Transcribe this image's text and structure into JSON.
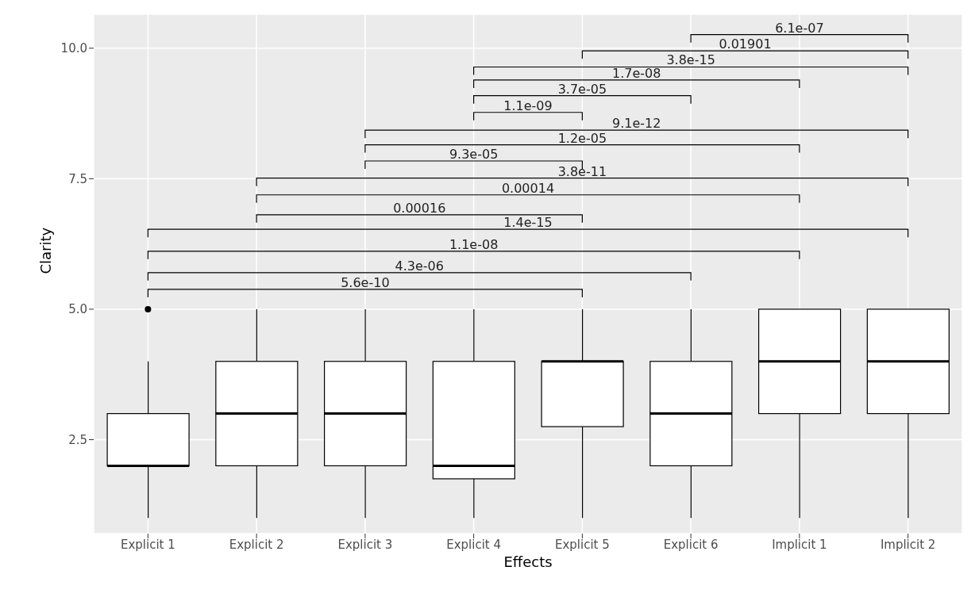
{
  "chart_data": {
    "type": "box",
    "xlabel": "Effects",
    "ylabel": "Clarity",
    "categories": [
      "Explicit 1",
      "Explicit 2",
      "Explicit 3",
      "Explicit 4",
      "Explicit 5",
      "Explicit 6",
      "Implicit 1",
      "Implicit 2"
    ],
    "color": "#ffffff",
    "boxes": [
      {
        "low": 1,
        "q1": 2,
        "median": 2,
        "q3": 3,
        "high": 4,
        "outliers": [
          5
        ]
      },
      {
        "low": 1,
        "q1": 2,
        "median": 3,
        "q3": 4,
        "high": 5
      },
      {
        "low": 1,
        "q1": 2,
        "median": 3,
        "q3": 4,
        "high": 5
      },
      {
        "low": 1,
        "q1": 1.75,
        "median": 2,
        "q3": 4,
        "high": 5
      },
      {
        "low": 1,
        "q1": 2.75,
        "median": 4,
        "q3": 4,
        "high": 5
      },
      {
        "low": 1,
        "q1": 2,
        "median": 3,
        "q3": 4,
        "high": 5
      },
      {
        "low": 1,
        "q1": 3,
        "median": 4,
        "q3": 5,
        "high": 5
      },
      {
        "low": 1,
        "q1": 3,
        "median": 4,
        "q3": 5,
        "high": 5
      }
    ],
    "ylim": [
      0.7,
      10.65
    ],
    "yticks": [
      {
        "value": 2.5,
        "label": "2.5"
      },
      {
        "value": 5,
        "label": "5.0"
      },
      {
        "value": 7.5,
        "label": "7.5"
      },
      {
        "value": 10,
        "label": "10.0"
      }
    ],
    "grid": true,
    "annotations": [
      "5.6e-10",
      "4.3e-06",
      "1.1e-08",
      "1.4e-15",
      "0.00016",
      "0.00014",
      "3.8e-11",
      "9.3e-05",
      "1.2e-05",
      "9.1e-12",
      "1.1e-09",
      "3.7e-05",
      "1.7e-08",
      "3.8e-15",
      "0.01901",
      "6.1e-07"
    ]
  }
}
